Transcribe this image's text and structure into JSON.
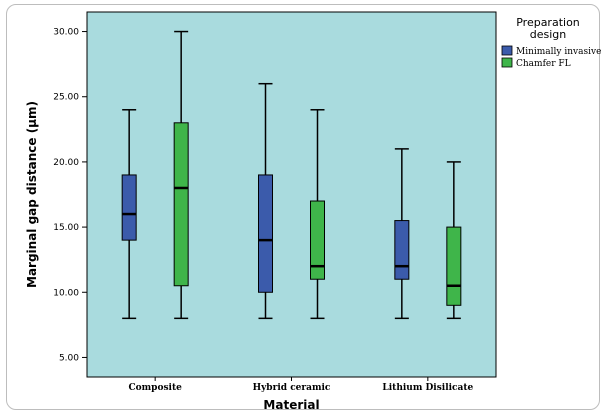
{
  "chart_data": {
    "type": "boxplot",
    "xlabel": "Material",
    "ylabel": "Marginal gap distance (µm)",
    "ylim": [
      3.5,
      31.5
    ],
    "yticks": [
      "5.00",
      "10.00",
      "15.00",
      "20.00",
      "25.00",
      "30.00"
    ],
    "categories": [
      "Composite",
      "Hybrid ceramic",
      "Lithium Disilicate"
    ],
    "legend": {
      "title_line1": "Preparation",
      "title_line2": "design",
      "position": "right"
    },
    "series": [
      {
        "name": "Minimally invasive",
        "color": "#3b5bab",
        "boxes": [
          {
            "min": 8,
            "q1": 14,
            "median": 16,
            "q3": 19,
            "max": 24
          },
          {
            "min": 8,
            "q1": 10,
            "median": 14,
            "q3": 19,
            "max": 26
          },
          {
            "min": 8,
            "q1": 11,
            "median": 12,
            "q3": 15.5,
            "max": 21
          }
        ]
      },
      {
        "name": "Chamfer FL",
        "color": "#3fb54a",
        "boxes": [
          {
            "min": 8,
            "q1": 10.5,
            "median": 18,
            "q3": 23,
            "max": 30
          },
          {
            "min": 8,
            "q1": 11,
            "median": 12,
            "q3": 17,
            "max": 24
          },
          {
            "min": 8,
            "q1": 9,
            "median": 10.5,
            "q3": 15,
            "max": 20
          }
        ]
      }
    ],
    "plot_background": "#a9dbde"
  }
}
